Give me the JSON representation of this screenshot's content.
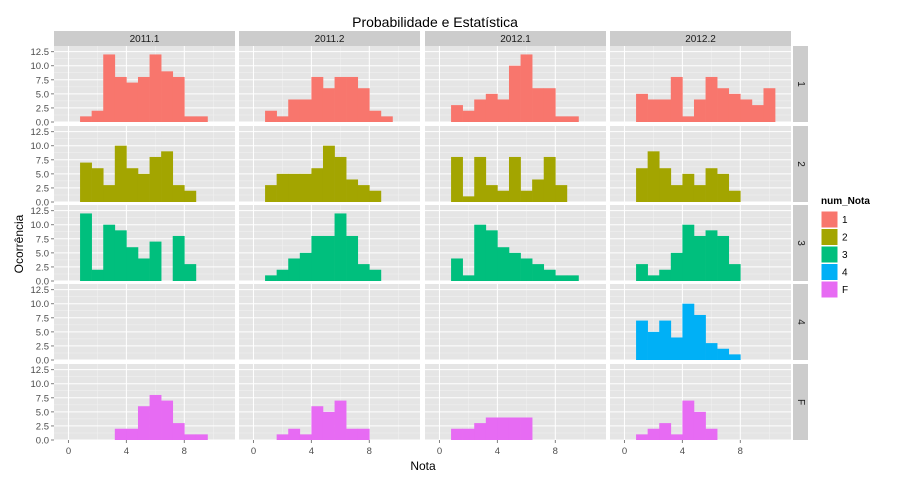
{
  "chart_data": {
    "type": "bar",
    "subtype": "faceted-histogram",
    "title": "Probabilidade e Estatística",
    "xlabel": "Nota",
    "ylabel": "Ocorrência",
    "col_facets": [
      "2011.1",
      "2011.2",
      "2012.1",
      "2012.2"
    ],
    "row_facets": [
      "1",
      "2",
      "3",
      "4",
      "F"
    ],
    "xlim": [
      -1,
      11.5
    ],
    "ylim": [
      0,
      13.5
    ],
    "x_ticks": [
      0,
      4,
      8
    ],
    "x_tick_labels": [
      "0",
      "4",
      "8"
    ],
    "y_ticks": [
      0,
      2.5,
      5,
      7.5,
      10,
      12.5
    ],
    "y_tick_labels": [
      "0.0",
      "2.5",
      "5.0",
      "7.5",
      "10.0",
      "12.5"
    ],
    "bin_width": 0.8,
    "bin_starts": [
      0,
      0.8,
      1.6,
      2.4,
      3.2,
      4.0,
      4.8,
      5.6,
      6.4,
      7.2,
      8.0,
      8.8,
      9.6,
      10.4
    ],
    "grid": true,
    "legend": {
      "title": "num_Nota",
      "placement": "right",
      "entries": [
        {
          "label": "1",
          "color": "#F8766D"
        },
        {
          "label": "2",
          "color": "#A3A500"
        },
        {
          "label": "3",
          "color": "#00BF7D"
        },
        {
          "label": "4",
          "color": "#00B0F6"
        },
        {
          "label": "F",
          "color": "#E76BF3"
        }
      ]
    },
    "panels": [
      [
        [
          0,
          1,
          2,
          12,
          8,
          7,
          8,
          12,
          9,
          8,
          1,
          1,
          0,
          0
        ],
        [
          0,
          2,
          1,
          4,
          4,
          8,
          6,
          8,
          8,
          6,
          2,
          1,
          0,
          0
        ],
        [
          0,
          3,
          2,
          4,
          5,
          4,
          10,
          12,
          6,
          6,
          1,
          1,
          0,
          0
        ],
        [
          0,
          5,
          4,
          4,
          8,
          1,
          4,
          8,
          6,
          5,
          4,
          3,
          6,
          0
        ]
      ],
      [
        [
          0,
          7,
          6,
          3,
          10,
          6,
          5,
          8,
          9,
          3,
          2,
          0,
          0,
          0
        ],
        [
          0,
          3,
          5,
          5,
          5,
          6,
          10,
          8,
          4,
          3,
          2,
          0,
          0,
          0
        ],
        [
          0,
          8,
          1,
          8,
          3,
          2,
          8,
          2,
          4,
          8,
          3,
          0,
          0,
          0
        ],
        [
          0,
          6,
          9,
          6,
          3,
          5,
          3,
          6,
          5,
          2,
          0,
          0,
          0,
          0
        ]
      ],
      [
        [
          0,
          12,
          2,
          10,
          9,
          6,
          4,
          7,
          0,
          8,
          3,
          0,
          0,
          0
        ],
        [
          0,
          1,
          2,
          4,
          5,
          8,
          8,
          12,
          8,
          3,
          2,
          0,
          0,
          0
        ],
        [
          0,
          4,
          1,
          10,
          9,
          6,
          5,
          4,
          3,
          2,
          1,
          1,
          0,
          0
        ],
        [
          0,
          3,
          1,
          2,
          5,
          10,
          8,
          9,
          8,
          3,
          0,
          0,
          0,
          0
        ]
      ],
      [
        [
          0,
          0,
          0,
          0,
          0,
          0,
          0,
          0,
          0,
          0,
          0,
          0,
          0,
          0
        ],
        [
          0,
          0,
          0,
          0,
          0,
          0,
          0,
          0,
          0,
          0,
          0,
          0,
          0,
          0
        ],
        [
          0,
          0,
          0,
          0,
          0,
          0,
          0,
          0,
          0,
          0,
          0,
          0,
          0,
          0
        ],
        [
          0,
          7,
          5,
          7,
          4,
          10,
          8,
          3,
          2,
          1,
          0,
          0,
          0,
          0
        ]
      ],
      [
        [
          0,
          0,
          0,
          0,
          2,
          2,
          6,
          8,
          7,
          3,
          1,
          1,
          0,
          0
        ],
        [
          0,
          0,
          1,
          2,
          1,
          6,
          5,
          7,
          2,
          2,
          0,
          0,
          0,
          0
        ],
        [
          0,
          2,
          2,
          3,
          4,
          4,
          4,
          4,
          0,
          0,
          0,
          0,
          0,
          0
        ],
        [
          0,
          1,
          2,
          3,
          1,
          7,
          5,
          2,
          0,
          0,
          0,
          0,
          0,
          0
        ]
      ]
    ]
  },
  "colors": {
    "panel_background": "#E5E5E5",
    "grid_major": "#FFFFFF",
    "grid_minor": "#F2F2F2",
    "strip_background": "#CCCCCC",
    "axis_text": "#4D4D4D"
  }
}
